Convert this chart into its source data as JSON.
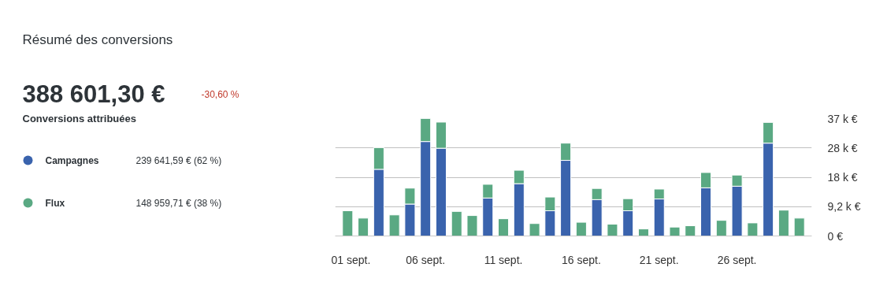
{
  "chart_data": {
    "type": "bar",
    "stacked": true,
    "title": "Résumé des conversions",
    "annotations": [
      "388 601,30 €",
      "-30,60 %",
      "Conversions attribuées",
      "239 641,59 €   (62 %)",
      "148 959,71 €   (38 %)"
    ],
    "categories": [
      "01 sept.",
      null,
      null,
      null,
      null,
      "06 sept.",
      null,
      null,
      null,
      null,
      "11 sept.",
      null,
      null,
      null,
      null,
      "16 sept.",
      null,
      null,
      null,
      null,
      "21 sept.",
      null,
      null,
      null,
      null,
      "26 sept.",
      null,
      null,
      null,
      null
    ],
    "series": [
      {
        "name": "Campagnes",
        "color": "#3a63ad",
        "values": [
          0,
          0,
          20.9,
          0,
          10.0,
          29.6,
          27.5,
          0,
          0,
          11.9,
          0,
          16.4,
          0,
          7.9,
          23.7,
          0,
          11.4,
          0,
          7.9,
          0,
          11.6,
          0,
          0,
          15.1,
          0,
          15.6,
          0,
          29.1,
          0,
          0
        ]
      },
      {
        "name": "Flux",
        "color": "#5aa983",
        "values": [
          7.9,
          5.6,
          6.8,
          6.6,
          5.0,
          7.2,
          8.2,
          7.7,
          6.4,
          4.3,
          5.4,
          4.2,
          3.9,
          4.3,
          5.4,
          4.3,
          3.5,
          3.7,
          3.8,
          2.2,
          3.1,
          2.8,
          3.2,
          4.8,
          4.9,
          3.5,
          4.1,
          6.5,
          8.1,
          5.6
        ]
      }
    ],
    "ylim": [
      0,
      36.8
    ],
    "yticks": [
      {
        "value": 0,
        "label": "0 €"
      },
      {
        "value": 9.2,
        "label": "9,2 k €"
      },
      {
        "value": 18.4,
        "label": "18 k €"
      },
      {
        "value": 27.6,
        "label": "28 k €"
      },
      {
        "value": 36.8,
        "label": "37 k €"
      }
    ],
    "grid": "y",
    "legend": "left"
  }
}
